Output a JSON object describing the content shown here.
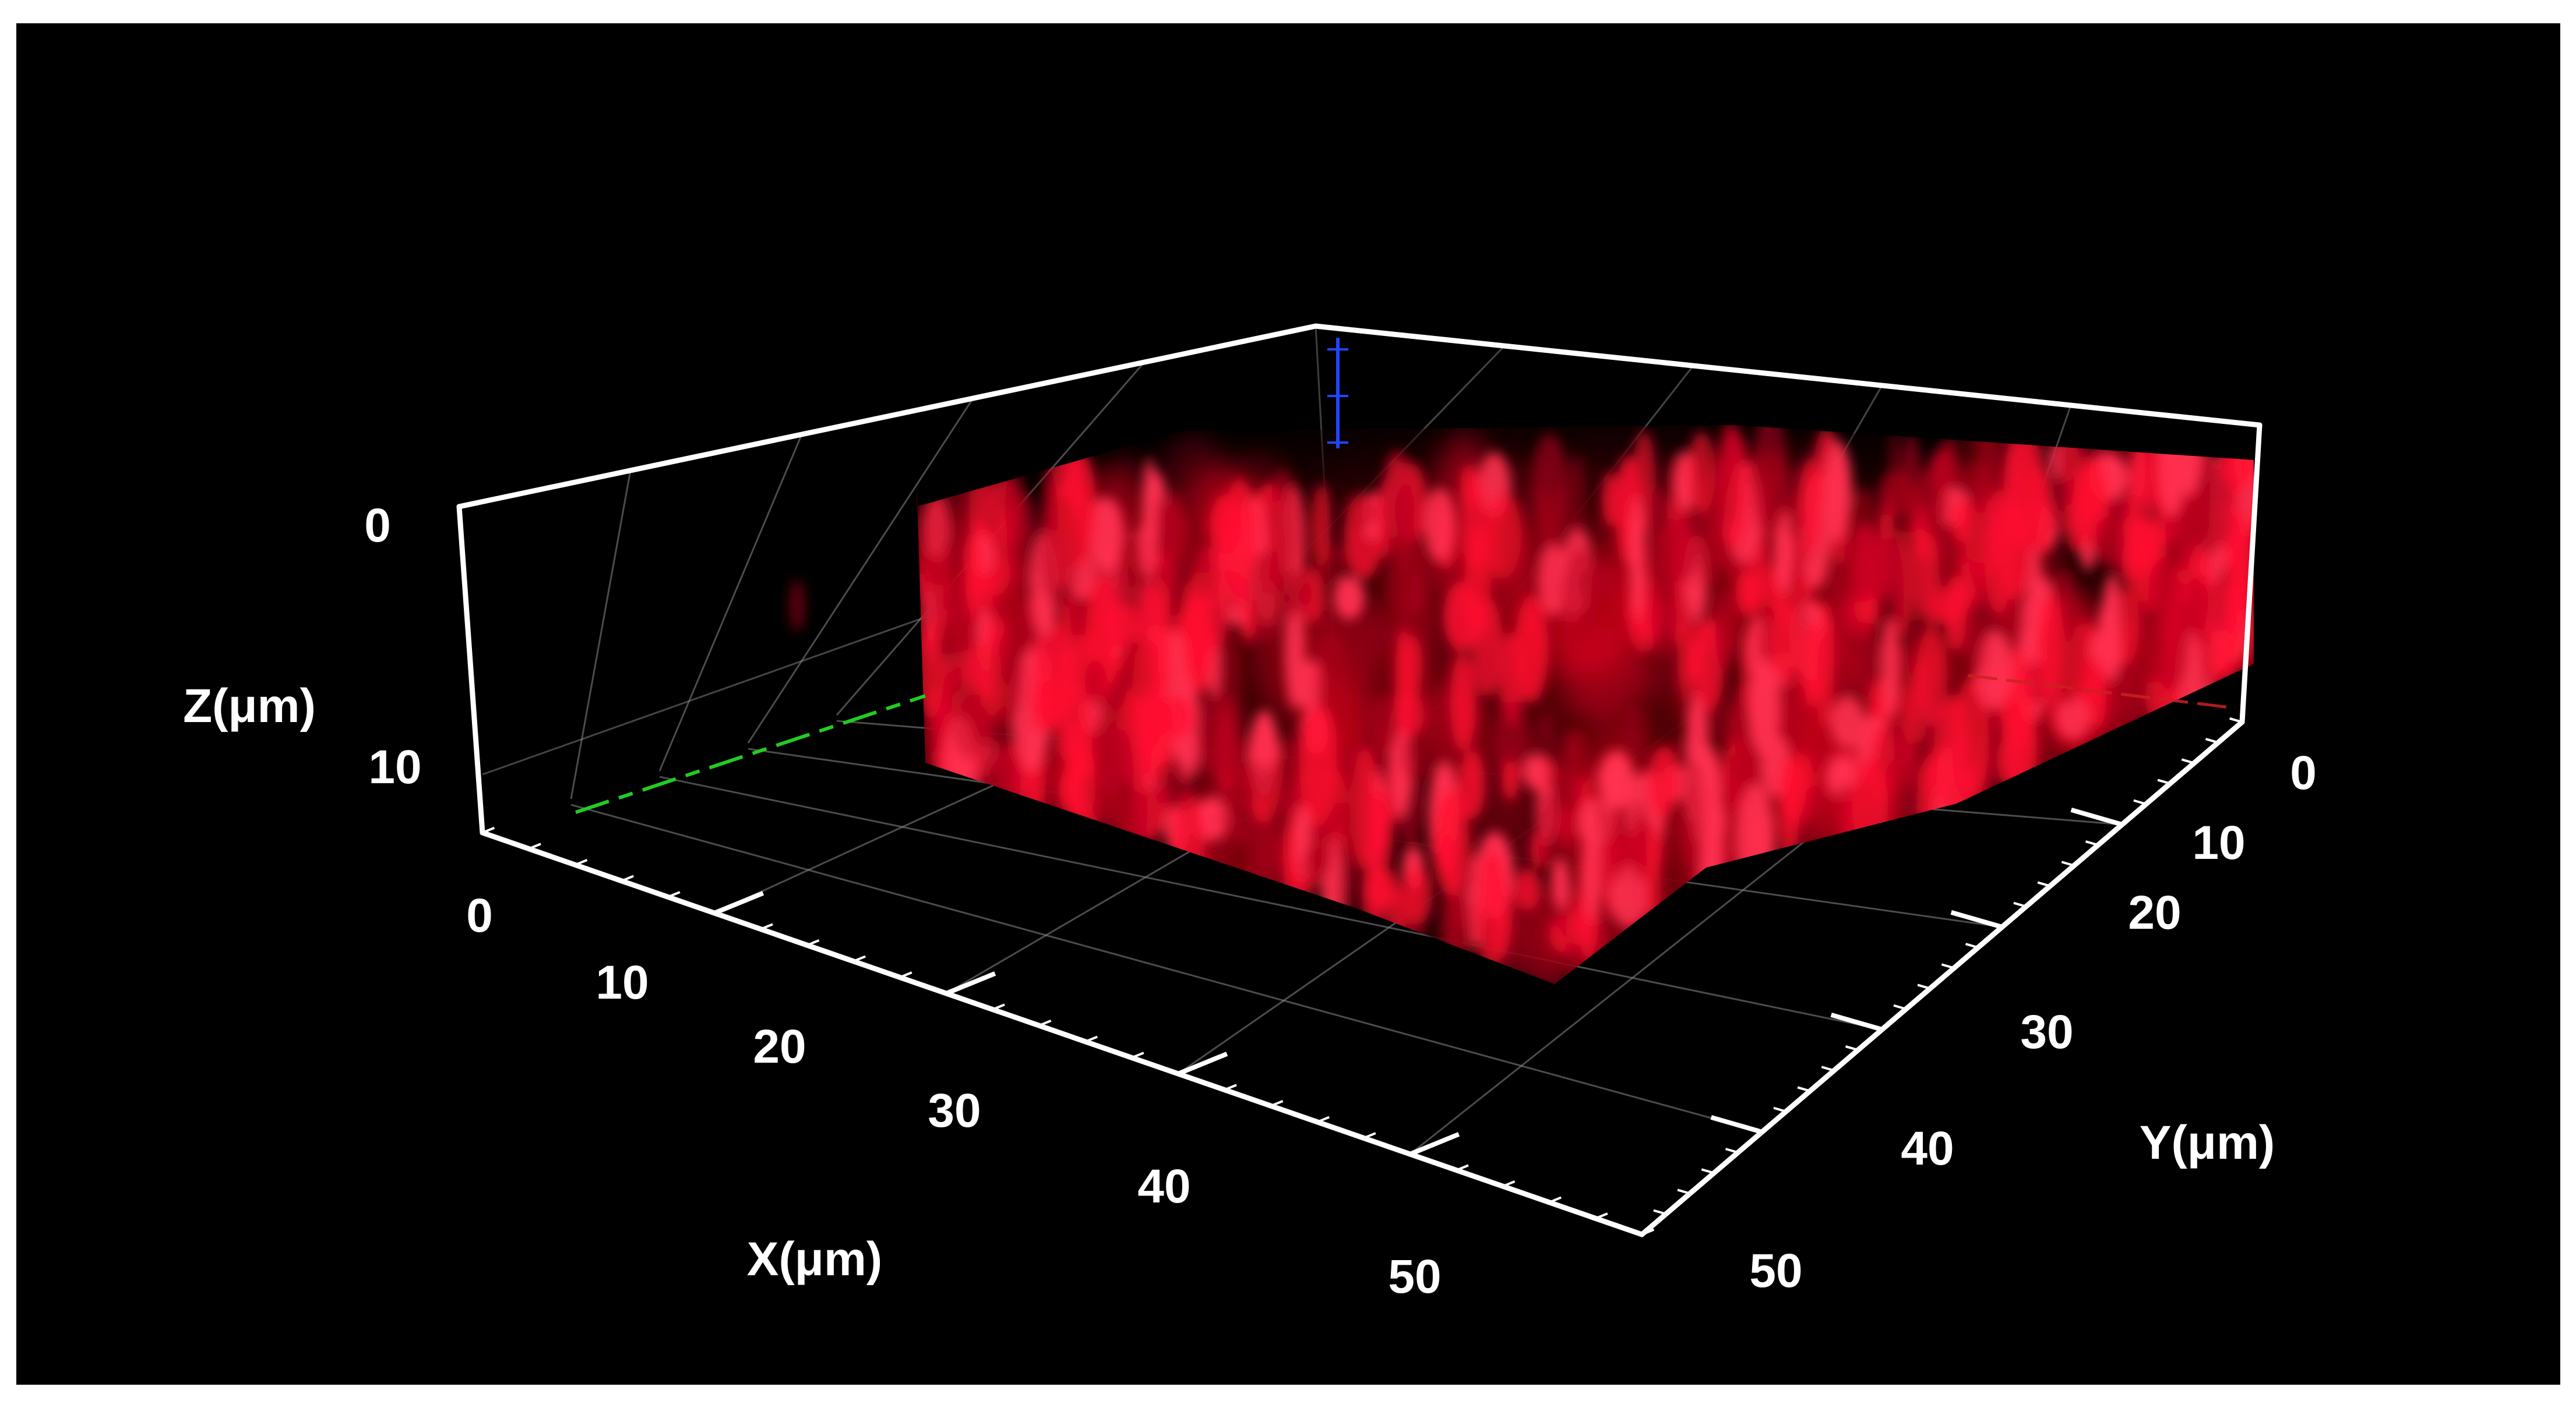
{
  "axes": {
    "x": {
      "label": "X(μm)",
      "ticks": [
        "0",
        "10",
        "20",
        "30",
        "40",
        "50"
      ]
    },
    "y": {
      "label": "Y(μm)",
      "ticks": [
        "0",
        "10",
        "20",
        "30",
        "40",
        "50"
      ]
    },
    "z": {
      "label": "Z(μm)",
      "ticks": [
        "0",
        "10"
      ]
    }
  },
  "colors": {
    "background": "#000000",
    "box_lines": "#ffffff",
    "grid_lines": "#8a8a8a",
    "signal": "#ff1030",
    "x_axis_marker": "#22cc22",
    "y_axis_marker": "#cc2222",
    "z_axis_marker": "#2244ff"
  }
}
